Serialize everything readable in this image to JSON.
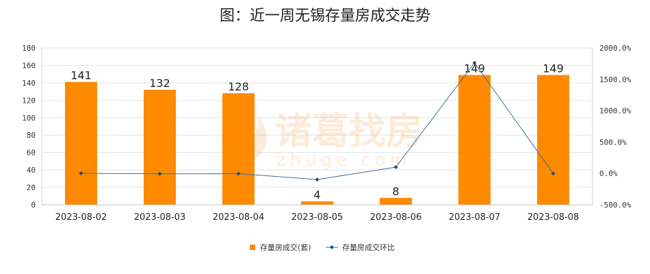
{
  "chart_data": {
    "type": "bar",
    "title": "图：近一周无锡存量房成交走势",
    "categories": [
      "2023-08-02",
      "2023-08-03",
      "2023-08-04",
      "2023-08-05",
      "2023-08-06",
      "2023-08-07",
      "2023-08-08"
    ],
    "series": [
      {
        "name": "存量房成交(套)",
        "type": "bar",
        "axis": "left",
        "color": "#ff8a00",
        "values": [
          141,
          132,
          128,
          4,
          8,
          149,
          149
        ],
        "data_labels": [
          "141",
          "132",
          "128",
          "4",
          "8",
          "149",
          "149"
        ]
      },
      {
        "name": "存量房成交环比",
        "type": "line",
        "axis": "right",
        "color": "#3a6f9a",
        "unit": "%",
        "values": [
          1.6,
          -6.4,
          -3.0,
          -96.9,
          100.0,
          1762.5,
          0.0
        ]
      }
    ],
    "y_left": {
      "ylim": [
        0,
        180
      ],
      "ticks": [
        0,
        20,
        40,
        60,
        80,
        100,
        120,
        140,
        160,
        180
      ]
    },
    "y_right": {
      "ylim": [
        -500,
        2000
      ],
      "ticks": [
        -500,
        0,
        500,
        1000,
        1500,
        2000
      ],
      "tick_labels": [
        "-500.0%",
        "0.0%",
        "500.0%",
        "1000.0%",
        "1500.0%",
        "2000.0%"
      ]
    },
    "grid": true,
    "legend_position": "bottom-center"
  },
  "watermark": {
    "brand": "诸葛找房",
    "domain": "zhuge.com"
  }
}
